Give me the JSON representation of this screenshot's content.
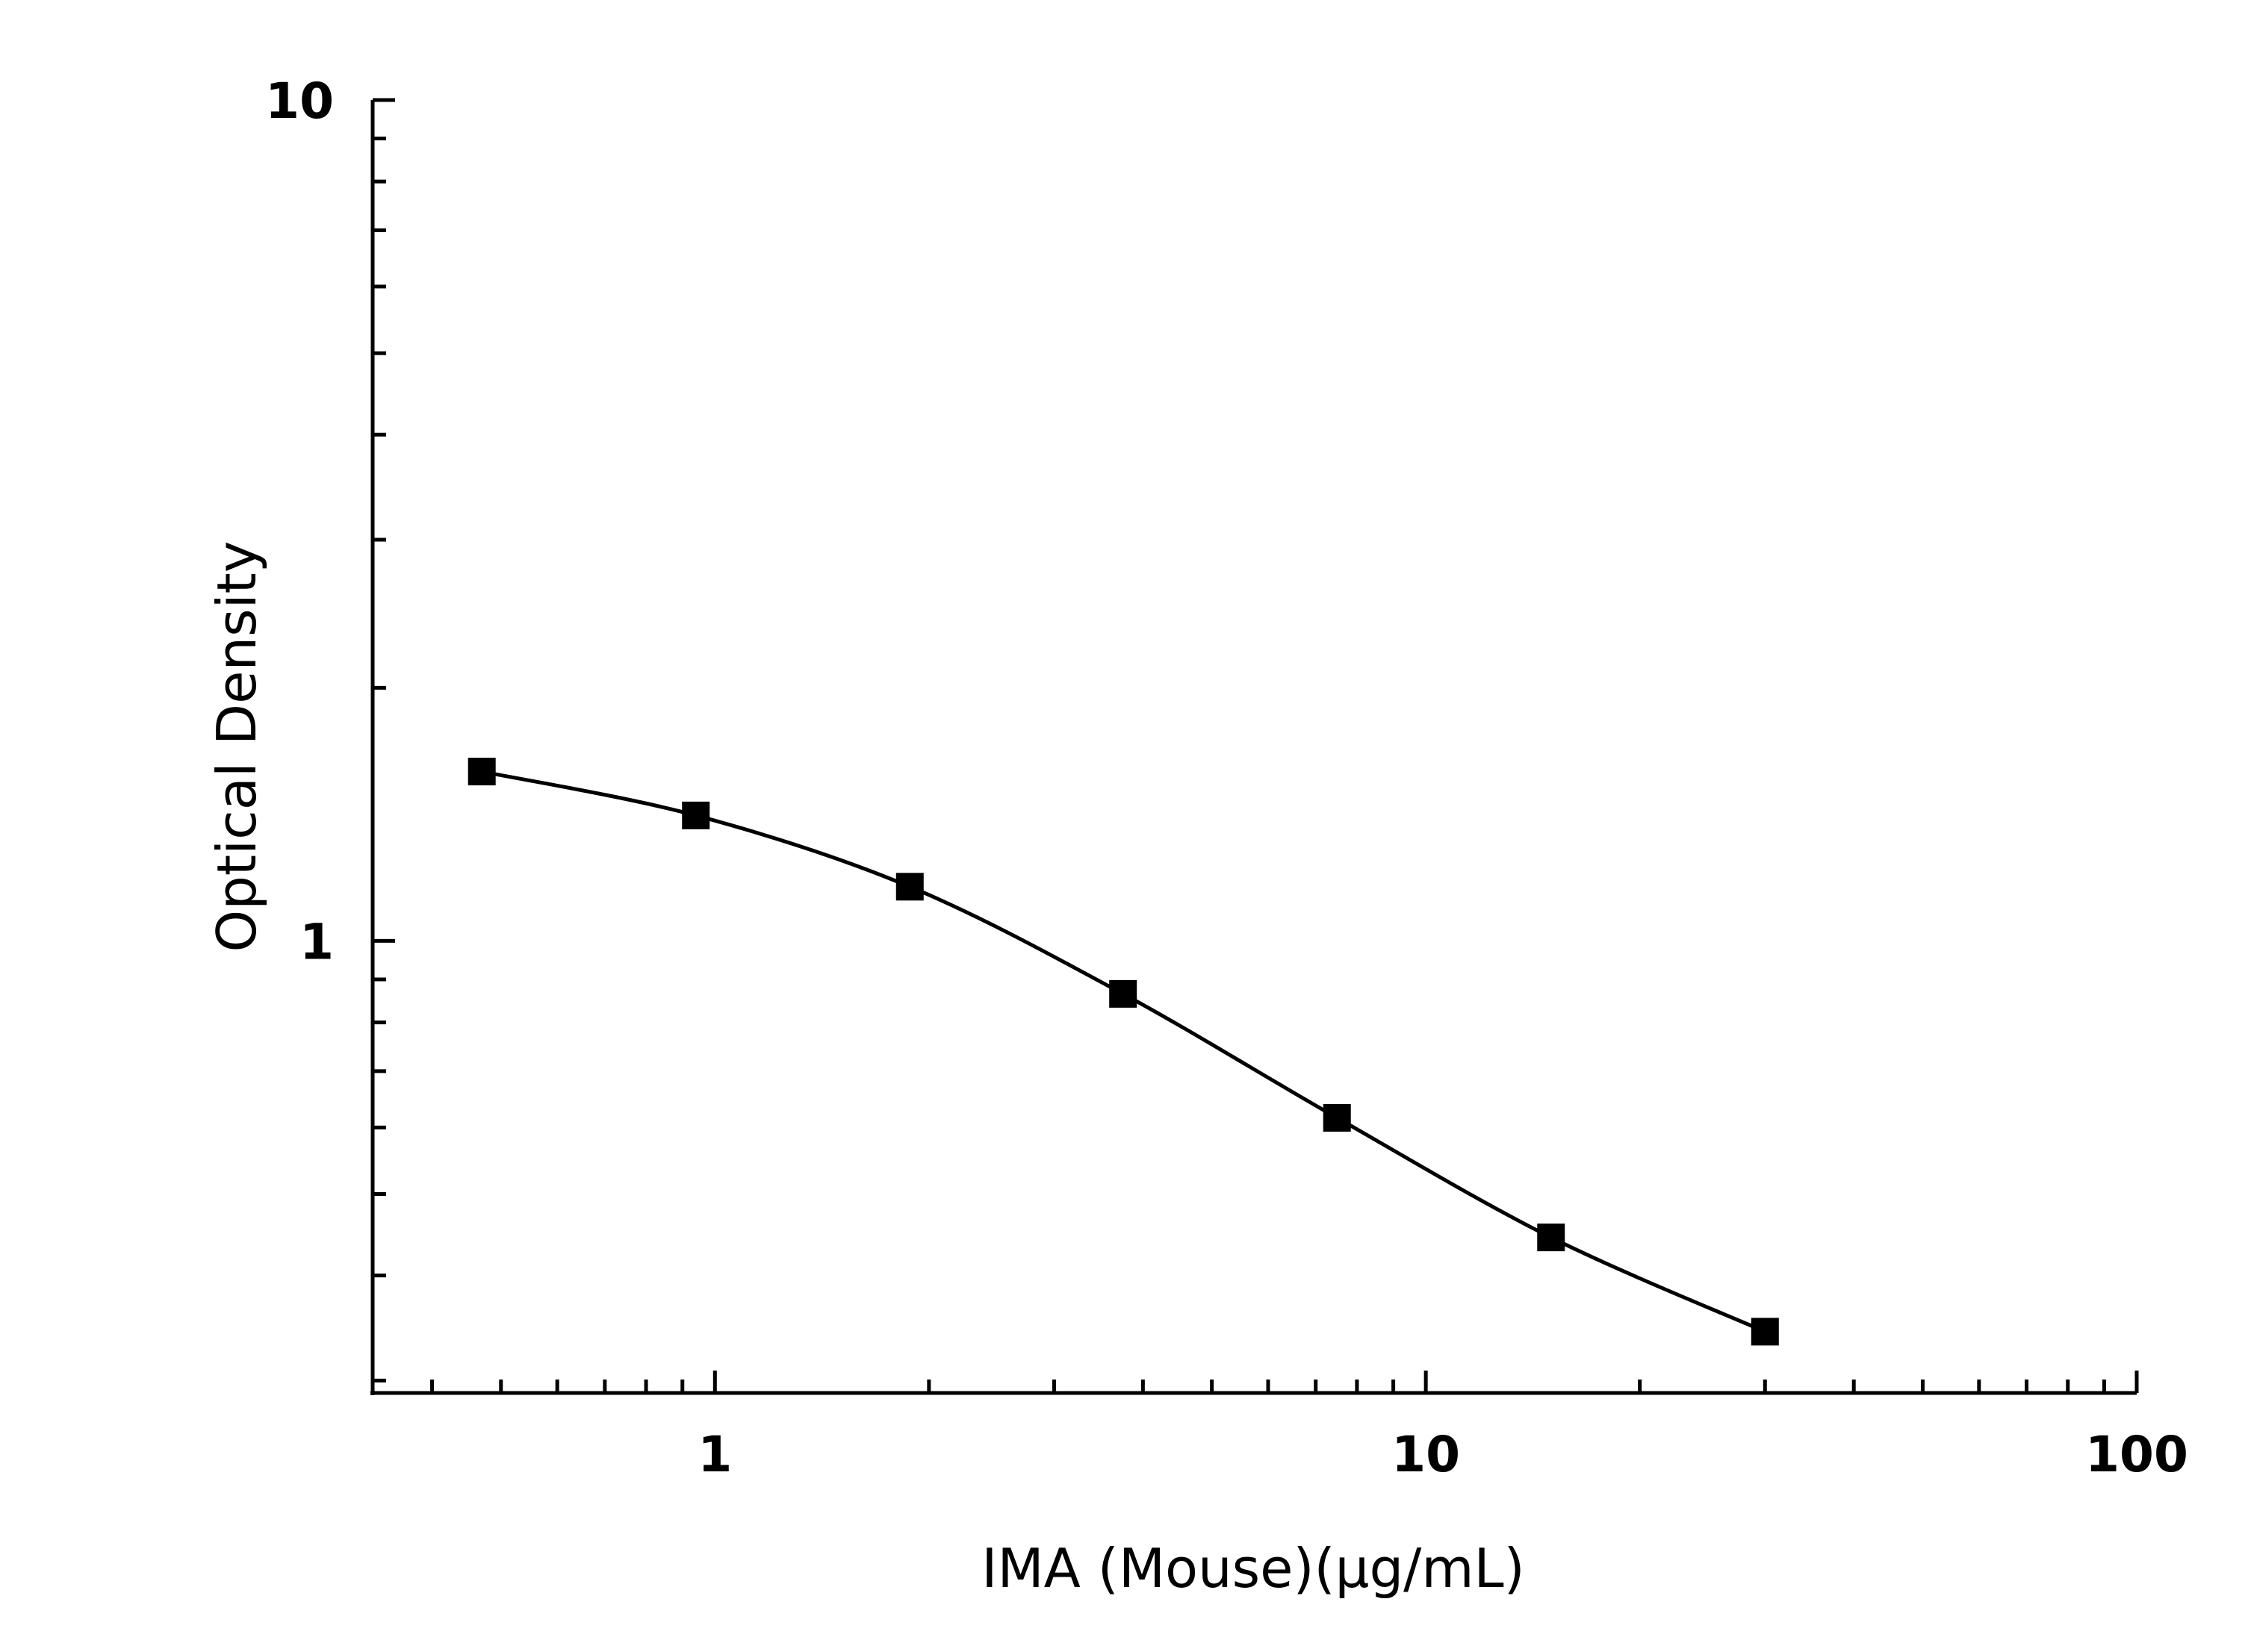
{
  "chart_data": {
    "type": "scatter",
    "title": "",
    "xlabel": "IMA (Mouse)(μg/mL)",
    "ylabel": "Optical Density",
    "x_scale": "log",
    "y_scale": "log",
    "xlim": [
      0.33,
      100
    ],
    "ylim": [
      0.29,
      10
    ],
    "x_ticks": [
      {
        "value": 1,
        "label": "1"
      },
      {
        "value": 10,
        "label": "10"
      },
      {
        "value": 100,
        "label": "100"
      }
    ],
    "y_ticks": [
      {
        "value": 1,
        "label": "1"
      },
      {
        "value": 10,
        "label": "10"
      }
    ],
    "grid": false,
    "legend": "none",
    "series": [
      {
        "marker": "square",
        "color": "#000000",
        "x": [
          0.47,
          0.94,
          1.88,
          3.75,
          7.5,
          15,
          30
        ],
        "y": [
          1.59,
          1.41,
          1.16,
          0.865,
          0.616,
          0.444,
          0.343
        ]
      }
    ],
    "fit_curve": true
  }
}
